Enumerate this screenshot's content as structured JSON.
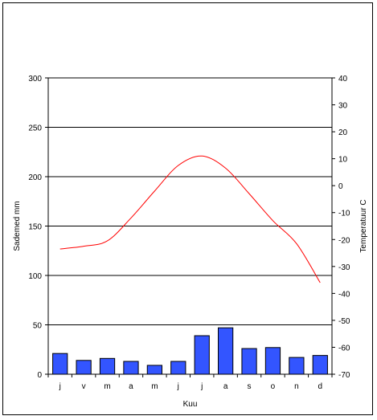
{
  "chart_data": {
    "type": "bar+line",
    "categories": [
      "j",
      "v",
      "m",
      "a",
      "m",
      "j",
      "j",
      "a",
      "s",
      "o",
      "n",
      "d"
    ],
    "xlabel": "Kuu",
    "ylabel_left": "Sademed mm",
    "ylabel_right": "Temperatuur C",
    "ylim_left": [
      0,
      300
    ],
    "yticks_left": [
      0,
      50,
      100,
      150,
      200,
      250,
      300
    ],
    "ylim_right": [
      -70,
      40
    ],
    "yticks_right": [
      -70,
      -60,
      -50,
      -40,
      -30,
      -20,
      -10,
      0,
      10,
      20,
      30,
      40
    ],
    "grid": true,
    "series": [
      {
        "type": "bar",
        "axis": "left",
        "color": "#3355ff",
        "values": [
          21,
          14,
          16,
          13,
          9,
          13,
          39,
          47,
          26,
          27,
          17,
          19
        ]
      },
      {
        "type": "line",
        "axis": "right",
        "color": "#ff0000",
        "values": [
          -23.5,
          -22.5,
          -20.5,
          -12.0,
          -2.0,
          7.5,
          11.0,
          6.5,
          -3.0,
          -13.0,
          -21.5,
          -36.0
        ]
      }
    ]
  }
}
